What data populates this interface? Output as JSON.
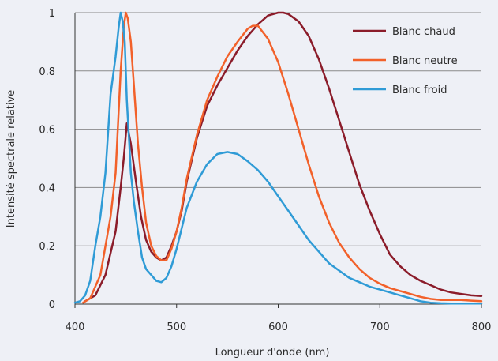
{
  "chart_data": {
    "type": "line",
    "title": "",
    "xlabel": "Longueur d'onde (nm)",
    "ylabel": "Intensité spectrale relative",
    "xlim": [
      400,
      800
    ],
    "ylim": [
      0,
      1
    ],
    "x_ticks": [
      400,
      500,
      600,
      700,
      800
    ],
    "y_ticks": [
      0,
      0.2,
      0.4,
      0.6,
      0.8,
      1
    ],
    "x_tick_labels": [
      "400",
      "500",
      "600",
      "700",
      "800"
    ],
    "y_tick_labels": [
      "0",
      "0.2",
      "0.4",
      "0.6",
      "0.8",
      "1"
    ],
    "grid": "horizontal",
    "legend": "top-right",
    "series": [
      {
        "name": "Blanc chaud",
        "color": "#8b1c2a",
        "points": [
          [
            410,
            0.01
          ],
          [
            420,
            0.03
          ],
          [
            430,
            0.1
          ],
          [
            440,
            0.25
          ],
          [
            445,
            0.4
          ],
          [
            448,
            0.5
          ],
          [
            451,
            0.62
          ],
          [
            455,
            0.55
          ],
          [
            460,
            0.42
          ],
          [
            465,
            0.3
          ],
          [
            470,
            0.22
          ],
          [
            475,
            0.18
          ],
          [
            480,
            0.16
          ],
          [
            485,
            0.15
          ],
          [
            490,
            0.16
          ],
          [
            495,
            0.2
          ],
          [
            500,
            0.25
          ],
          [
            505,
            0.32
          ],
          [
            510,
            0.42
          ],
          [
            520,
            0.57
          ],
          [
            530,
            0.68
          ],
          [
            540,
            0.75
          ],
          [
            550,
            0.81
          ],
          [
            560,
            0.87
          ],
          [
            570,
            0.92
          ],
          [
            580,
            0.96
          ],
          [
            590,
            0.99
          ],
          [
            600,
            1.0
          ],
          [
            605,
            1.0
          ],
          [
            610,
            0.995
          ],
          [
            620,
            0.97
          ],
          [
            630,
            0.92
          ],
          [
            640,
            0.84
          ],
          [
            650,
            0.74
          ],
          [
            660,
            0.63
          ],
          [
            670,
            0.52
          ],
          [
            680,
            0.41
          ],
          [
            690,
            0.32
          ],
          [
            700,
            0.24
          ],
          [
            710,
            0.17
          ],
          [
            720,
            0.13
          ],
          [
            730,
            0.1
          ],
          [
            740,
            0.08
          ],
          [
            750,
            0.065
          ],
          [
            760,
            0.05
          ],
          [
            770,
            0.04
          ],
          [
            780,
            0.035
          ],
          [
            790,
            0.03
          ],
          [
            800,
            0.028
          ]
        ]
      },
      {
        "name": "Blanc neutre",
        "color": "#f2612a",
        "points": [
          [
            408,
            0.005
          ],
          [
            415,
            0.02
          ],
          [
            425,
            0.1
          ],
          [
            435,
            0.3
          ],
          [
            440,
            0.45
          ],
          [
            445,
            0.8
          ],
          [
            448,
            0.95
          ],
          [
            450,
            1.0
          ],
          [
            452,
            0.98
          ],
          [
            455,
            0.9
          ],
          [
            458,
            0.75
          ],
          [
            462,
            0.55
          ],
          [
            466,
            0.4
          ],
          [
            470,
            0.28
          ],
          [
            475,
            0.2
          ],
          [
            480,
            0.165
          ],
          [
            485,
            0.15
          ],
          [
            490,
            0.15
          ],
          [
            495,
            0.19
          ],
          [
            500,
            0.25
          ],
          [
            505,
            0.33
          ],
          [
            510,
            0.43
          ],
          [
            520,
            0.58
          ],
          [
            530,
            0.7
          ],
          [
            540,
            0.78
          ],
          [
            550,
            0.85
          ],
          [
            560,
            0.9
          ],
          [
            570,
            0.945
          ],
          [
            575,
            0.955
          ],
          [
            580,
            0.955
          ],
          [
            590,
            0.91
          ],
          [
            600,
            0.83
          ],
          [
            610,
            0.72
          ],
          [
            620,
            0.6
          ],
          [
            630,
            0.48
          ],
          [
            640,
            0.37
          ],
          [
            650,
            0.28
          ],
          [
            660,
            0.21
          ],
          [
            670,
            0.16
          ],
          [
            680,
            0.12
          ],
          [
            690,
            0.09
          ],
          [
            700,
            0.07
          ],
          [
            710,
            0.055
          ],
          [
            720,
            0.045
          ],
          [
            730,
            0.035
          ],
          [
            740,
            0.025
          ],
          [
            750,
            0.018
          ],
          [
            760,
            0.014
          ],
          [
            770,
            0.014
          ],
          [
            780,
            0.014
          ],
          [
            790,
            0.012
          ],
          [
            800,
            0.01
          ]
        ]
      },
      {
        "name": "Blanc froid",
        "color": "#2f9bd6",
        "points": [
          [
            400,
            0.005
          ],
          [
            405,
            0.01
          ],
          [
            410,
            0.03
          ],
          [
            415,
            0.08
          ],
          [
            420,
            0.2
          ],
          [
            425,
            0.3
          ],
          [
            430,
            0.45
          ],
          [
            435,
            0.72
          ],
          [
            440,
            0.85
          ],
          [
            443,
            0.95
          ],
          [
            445,
            1.0
          ],
          [
            447,
            0.97
          ],
          [
            449,
            0.9
          ],
          [
            451,
            0.7
          ],
          [
            453,
            0.58
          ],
          [
            455,
            0.45
          ],
          [
            458,
            0.35
          ],
          [
            462,
            0.25
          ],
          [
            466,
            0.16
          ],
          [
            470,
            0.12
          ],
          [
            475,
            0.1
          ],
          [
            480,
            0.08
          ],
          [
            485,
            0.075
          ],
          [
            490,
            0.09
          ],
          [
            495,
            0.13
          ],
          [
            500,
            0.19
          ],
          [
            505,
            0.26
          ],
          [
            510,
            0.33
          ],
          [
            520,
            0.42
          ],
          [
            530,
            0.48
          ],
          [
            540,
            0.515
          ],
          [
            550,
            0.522
          ],
          [
            560,
            0.515
          ],
          [
            570,
            0.49
          ],
          [
            580,
            0.46
          ],
          [
            590,
            0.42
          ],
          [
            600,
            0.37
          ],
          [
            610,
            0.32
          ],
          [
            620,
            0.27
          ],
          [
            630,
            0.22
          ],
          [
            640,
            0.18
          ],
          [
            650,
            0.14
          ],
          [
            660,
            0.115
          ],
          [
            670,
            0.09
          ],
          [
            680,
            0.075
          ],
          [
            690,
            0.06
          ],
          [
            700,
            0.05
          ],
          [
            710,
            0.04
          ],
          [
            720,
            0.03
          ],
          [
            730,
            0.02
          ],
          [
            740,
            0.01
          ],
          [
            750,
            0.005
          ],
          [
            760,
            0.003
          ],
          [
            770,
            0.002
          ],
          [
            780,
            0.002
          ],
          [
            790,
            0.002
          ],
          [
            800,
            0.002
          ]
        ]
      }
    ]
  }
}
